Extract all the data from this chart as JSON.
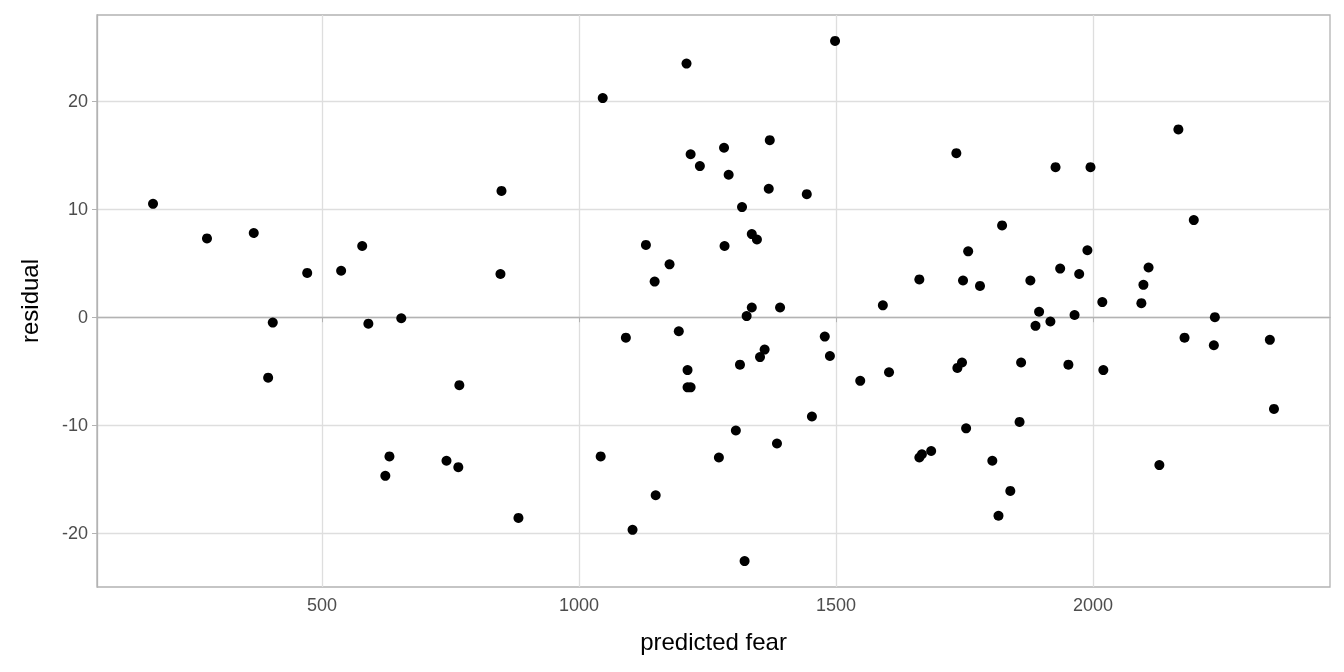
{
  "chart_data": {
    "type": "scatter",
    "xlabel": "predicted fear",
    "ylabel": "residual",
    "color": "#000000",
    "marker": "circle",
    "grid": true,
    "xlim": [
      62,
      2461
    ],
    "ylim": [
      -25,
      28
    ],
    "xticks": [
      500,
      1000,
      1500,
      2000
    ],
    "yticks": [
      -20,
      -10,
      0,
      10,
      20
    ],
    "x": [
      171,
      276,
      367,
      471,
      537,
      578,
      404,
      395,
      590,
      654,
      767,
      631,
      623,
      742,
      765,
      849,
      847,
      1498,
      1209,
      1046,
      1371,
      1282,
      1217,
      1235,
      1291,
      1369,
      1443,
      1317,
      1336,
      1346,
      1130,
      1283,
      1176,
      1147,
      1662,
      1336,
      1391,
      1326,
      1591,
      1091,
      1194,
      1478,
      1361,
      1352,
      1488,
      1211,
      1313,
      1603,
      1547,
      1211,
      1217,
      1453,
      1305,
      1385,
      1042,
      1272,
      1662,
      1149,
      882,
      1104,
      1322,
      2166,
      1734,
      1927,
      1995,
      2196,
      1823,
      1757,
      1989,
      1747,
      1780,
      1878,
      1936,
      1973,
      2108,
      2098,
      2094,
      2018,
      1895,
      1917,
      1888,
      1964,
      2237,
      2178,
      2235,
      2344,
      1745,
      1736,
      1860,
      1952,
      2020,
      2352,
      1753,
      1857,
      1667,
      1685,
      1804,
      2129,
      1839,
      1816
    ],
    "values": [
      10.5,
      7.3,
      7.8,
      4.1,
      4.3,
      6.6,
      -0.5,
      -5.6,
      -0.6,
      -0.1,
      -6.3,
      -12.9,
      -14.7,
      -13.3,
      -13.9,
      11.7,
      4.0,
      25.6,
      23.5,
      20.3,
      16.4,
      15.7,
      15.1,
      14.0,
      13.2,
      11.9,
      11.4,
      10.2,
      7.7,
      7.2,
      6.7,
      6.6,
      4.9,
      3.3,
      3.5,
      0.9,
      0.9,
      0.1,
      1.1,
      -1.9,
      -1.3,
      -1.8,
      -3.0,
      -3.7,
      -3.6,
      -4.9,
      -4.4,
      -5.1,
      -5.9,
      -6.5,
      -6.5,
      -9.2,
      -10.5,
      -11.7,
      -12.9,
      -13.0,
      -13.0,
      -16.5,
      -18.6,
      -19.7,
      -22.6,
      17.4,
      15.2,
      13.9,
      13.9,
      9.0,
      8.5,
      6.1,
      6.2,
      3.4,
      2.9,
      3.4,
      4.5,
      4.0,
      4.6,
      3.0,
      1.3,
      1.4,
      0.5,
      -0.4,
      -0.8,
      0.2,
      0.0,
      -1.9,
      -2.6,
      -2.1,
      -4.2,
      -4.7,
      -4.2,
      -4.4,
      -4.9,
      -8.5,
      -10.3,
      -9.7,
      -12.7,
      -12.4,
      -13.3,
      -13.7,
      -16.1,
      -18.4
    ]
  }
}
